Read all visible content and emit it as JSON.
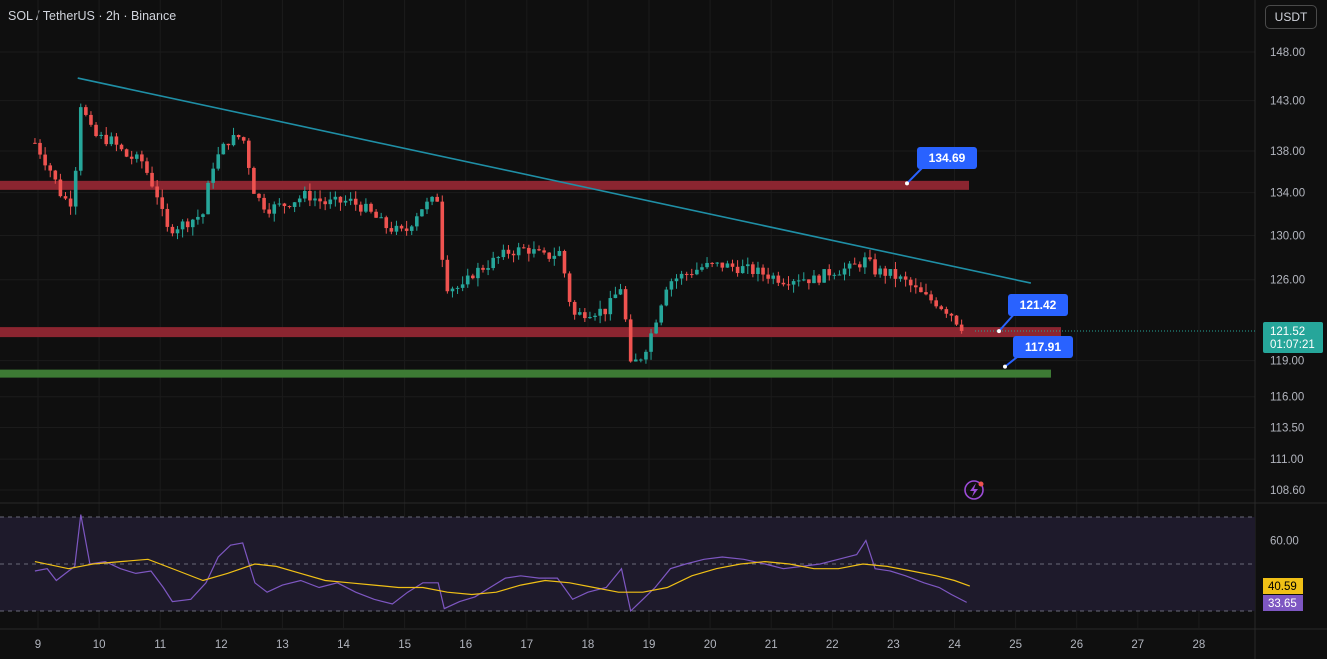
{
  "header": {
    "title": "SOL / TetherUS · 2h · Binance",
    "currency_button": "USDT"
  },
  "colors": {
    "background": "#0f0f0f",
    "up": "#26a69a",
    "down": "#ef5350",
    "trendline": "#1f8fa6",
    "resistance_zone": "#8b2530",
    "support_zone": "#3d7a34",
    "callout": "#2962ff",
    "rsi_line": "#7e57c2",
    "rsi_ma": "#f0c016",
    "rsi_band": "#1e1a2b"
  },
  "chart_data": [
    {
      "type": "candlestick",
      "title": "SOL / TetherUS · 2h · Binance",
      "x_tick_labels": [
        "9",
        "10",
        "11",
        "12",
        "13",
        "14",
        "15",
        "16",
        "17",
        "18",
        "19",
        "20",
        "21",
        "22",
        "23",
        "24",
        "25",
        "26",
        "27",
        "28"
      ],
      "y_tick_labels": [
        "148.00",
        "143.00",
        "138.00",
        "134.00",
        "130.00",
        "126.00",
        "119.00",
        "116.00",
        "113.50",
        "111.00",
        "108.60"
      ],
      "price_axis": "log",
      "ylim": [
        107.5,
        151
      ],
      "current_price": {
        "value": "121.52",
        "countdown": "01:07:21"
      },
      "levels": [
        {
          "name": "resistance",
          "price": 134.69,
          "label": "134.69"
        },
        {
          "name": "mid-support",
          "price": 121.42,
          "label": "121.42"
        },
        {
          "name": "support",
          "price": 117.91,
          "label": "117.91"
        }
      ],
      "trendline": {
        "from": {
          "day": 9.65,
          "price": 145.3
        },
        "to": {
          "day": 25.25,
          "price": 125.7
        }
      },
      "close_path": [
        [
          8.95,
          138.8
        ],
        [
          9.2,
          136.2
        ],
        [
          9.4,
          133.5
        ],
        [
          9.6,
          133.0
        ],
        [
          9.65,
          143.5
        ],
        [
          9.9,
          139.5
        ],
        [
          10.2,
          139.0
        ],
        [
          10.45,
          137.5
        ],
        [
          10.7,
          137.0
        ],
        [
          10.95,
          133.8
        ],
        [
          11.1,
          130.5
        ],
        [
          11.35,
          131.0
        ],
        [
          11.7,
          132.0
        ],
        [
          11.85,
          136.5
        ],
        [
          12.1,
          139.0
        ],
        [
          12.35,
          139.5
        ],
        [
          12.55,
          133.8
        ],
        [
          12.75,
          132.5
        ],
        [
          13.0,
          132.8
        ],
        [
          13.4,
          133.8
        ],
        [
          13.7,
          133.0
        ],
        [
          14.1,
          133.2
        ],
        [
          14.35,
          132.5
        ],
        [
          14.7,
          130.8
        ],
        [
          15.0,
          130.2
        ],
        [
          15.25,
          132.5
        ],
        [
          15.55,
          133.5
        ],
        [
          15.65,
          125.5
        ],
        [
          15.95,
          125.2
        ],
        [
          16.1,
          126.5
        ],
        [
          16.4,
          127.5
        ],
        [
          16.7,
          128.5
        ],
        [
          17.0,
          128.8
        ],
        [
          17.3,
          128.0
        ],
        [
          17.55,
          128.5
        ],
        [
          17.75,
          122.8
        ],
        [
          18.0,
          123.2
        ],
        [
          18.3,
          123.3
        ],
        [
          18.55,
          125.5
        ],
        [
          18.7,
          118.5
        ],
        [
          18.9,
          119.5
        ],
        [
          19.05,
          121.5
        ],
        [
          19.3,
          125.8
        ],
        [
          19.6,
          126.5
        ],
        [
          19.9,
          127.2
        ],
        [
          20.2,
          127.3
        ],
        [
          20.55,
          127.0
        ],
        [
          20.9,
          126.5
        ],
        [
          21.2,
          126.0
        ],
        [
          21.45,
          126.2
        ],
        [
          21.7,
          126.0
        ],
        [
          22.0,
          126.8
        ],
        [
          22.3,
          127.0
        ],
        [
          22.55,
          127.8
        ],
        [
          22.7,
          126.8
        ],
        [
          22.95,
          126.5
        ],
        [
          23.2,
          125.8
        ],
        [
          23.5,
          124.5
        ],
        [
          23.7,
          124.0
        ],
        [
          23.95,
          123.0
        ],
        [
          24.15,
          121.52
        ]
      ]
    },
    {
      "type": "line",
      "title": "RSI",
      "y_tick_labels": [
        "60.00"
      ],
      "bands": [
        70,
        50,
        30
      ],
      "ylim": [
        28,
        74
      ],
      "series": [
        {
          "values_label": "33.65",
          "points": [
            [
              8.95,
              47
            ],
            [
              9.15,
              48
            ],
            [
              9.3,
              43
            ],
            [
              9.45,
              46
            ],
            [
              9.6,
              49
            ],
            [
              9.7,
              71
            ],
            [
              9.85,
              50
            ],
            [
              10.1,
              51
            ],
            [
              10.35,
              48
            ],
            [
              10.6,
              46
            ],
            [
              10.85,
              47
            ],
            [
              11.05,
              40
            ],
            [
              11.2,
              34
            ],
            [
              11.5,
              35
            ],
            [
              11.75,
              42
            ],
            [
              11.95,
              53
            ],
            [
              12.15,
              58
            ],
            [
              12.35,
              59
            ],
            [
              12.55,
              42
            ],
            [
              12.75,
              38
            ],
            [
              13.0,
              41
            ],
            [
              13.3,
              43
            ],
            [
              13.6,
              40
            ],
            [
              13.9,
              42
            ],
            [
              14.2,
              38
            ],
            [
              14.5,
              35
            ],
            [
              14.8,
              33
            ],
            [
              15.05,
              38
            ],
            [
              15.3,
              42
            ],
            [
              15.55,
              42
            ],
            [
              15.65,
              31
            ],
            [
              15.9,
              34
            ],
            [
              16.15,
              36
            ],
            [
              16.4,
              40
            ],
            [
              16.65,
              44
            ],
            [
              16.9,
              45
            ],
            [
              17.2,
              44
            ],
            [
              17.5,
              44
            ],
            [
              17.75,
              35
            ],
            [
              18.0,
              38
            ],
            [
              18.3,
              40
            ],
            [
              18.55,
              48
            ],
            [
              18.7,
              30
            ],
            [
              18.9,
              35
            ],
            [
              19.1,
              40
            ],
            [
              19.35,
              48
            ],
            [
              19.6,
              50
            ],
            [
              19.9,
              52
            ],
            [
              20.2,
              53
            ],
            [
              20.55,
              52
            ],
            [
              20.9,
              50
            ],
            [
              21.2,
              48
            ],
            [
              21.5,
              49
            ],
            [
              21.8,
              50
            ],
            [
              22.1,
              52
            ],
            [
              22.4,
              54
            ],
            [
              22.55,
              60
            ],
            [
              22.7,
              48
            ],
            [
              22.95,
              47
            ],
            [
              23.2,
              45
            ],
            [
              23.5,
              42
            ],
            [
              23.75,
              40
            ],
            [
              23.95,
              37
            ],
            [
              24.2,
              33.65
            ]
          ]
        },
        {
          "values_label": "40.59",
          "points": [
            [
              8.95,
              51
            ],
            [
              9.5,
              48
            ],
            [
              9.9,
              50
            ],
            [
              10.35,
              51
            ],
            [
              10.8,
              52
            ],
            [
              11.3,
              47
            ],
            [
              11.7,
              43
            ],
            [
              12.1,
              46
            ],
            [
              12.55,
              50
            ],
            [
              12.9,
              49
            ],
            [
              13.3,
              46
            ],
            [
              13.7,
              43
            ],
            [
              14.1,
              42
            ],
            [
              14.5,
              41
            ],
            [
              14.9,
              40
            ],
            [
              15.3,
              40
            ],
            [
              15.7,
              38
            ],
            [
              16.1,
              37
            ],
            [
              16.5,
              38
            ],
            [
              16.9,
              41
            ],
            [
              17.3,
              43
            ],
            [
              17.7,
              42
            ],
            [
              18.1,
              40
            ],
            [
              18.5,
              38
            ],
            [
              18.9,
              38
            ],
            [
              19.3,
              40
            ],
            [
              19.7,
              45
            ],
            [
              20.1,
              48
            ],
            [
              20.5,
              50
            ],
            [
              20.9,
              51
            ],
            [
              21.3,
              50
            ],
            [
              21.7,
              48
            ],
            [
              22.1,
              48
            ],
            [
              22.5,
              50
            ],
            [
              22.9,
              49
            ],
            [
              23.3,
              47
            ],
            [
              23.7,
              45
            ],
            [
              24.0,
              43
            ],
            [
              24.25,
              40.59
            ]
          ]
        }
      ]
    }
  ]
}
